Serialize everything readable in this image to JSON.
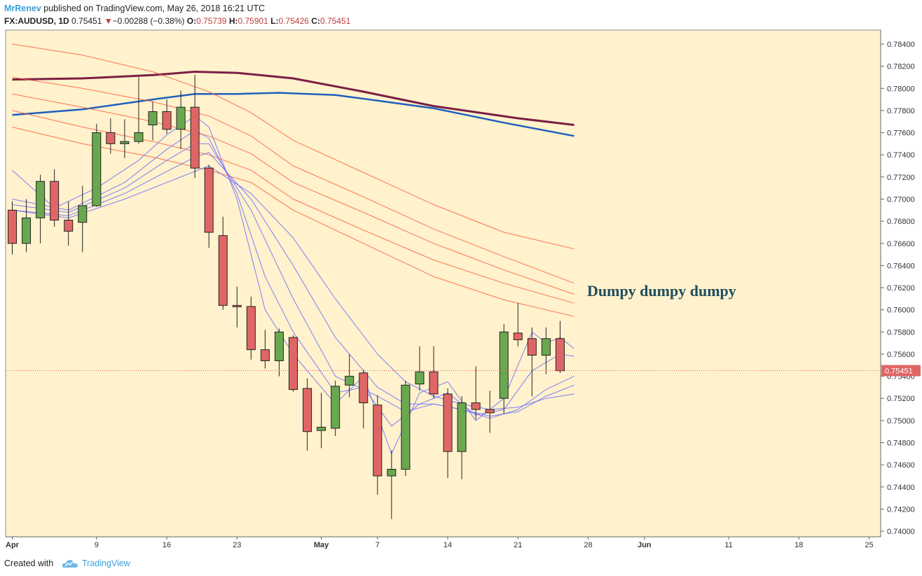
{
  "header": {
    "author": "MrRenev",
    "published": "published on TradingView.com, May 26, 2018 16:21 UTC",
    "symbol": "FX:AUDUSD, 1D",
    "last": "0.75451",
    "down_arrow": "▼",
    "change": "−0.00288 (−0.38%)",
    "o_label": "O:",
    "o_value": "0.75739",
    "h_label": "H:",
    "h_value": "0.75901",
    "l_label": "L:",
    "l_value": "0.75426",
    "c_label": "C:",
    "c_value": "0.75451"
  },
  "footer": {
    "created_with": "Created with",
    "brand": "TradingView",
    "brand_icon": "tradingview-cloud-icon"
  },
  "colors": {
    "background": "#fff2cc",
    "bull": "#6aa84f",
    "bear": "#e06666",
    "sma_long_1": "#7b1f45",
    "sma_long_2": "#1f5fbf",
    "ema_red": "#ff5a3c",
    "ema_blue": "#6b6bff",
    "last_price": "#e06666",
    "annotation": "#1f4e5f"
  },
  "chart_data": {
    "type": "candlestick",
    "symbol": "FX:AUDUSD",
    "timeframe": "1D",
    "annotation": "Dumpy dumpy dumpy",
    "last_price": 0.75451,
    "last_price_label": "0.75451",
    "ylim": [
      0.7395,
      0.7852
    ],
    "y_ticks": [
      "0.78400",
      "0.78200",
      "0.78000",
      "0.77800",
      "0.77600",
      "0.77400",
      "0.77200",
      "0.77000",
      "0.76800",
      "0.76600",
      "0.76400",
      "0.76200",
      "0.76000",
      "0.75800",
      "0.75600",
      "0.75400",
      "0.75200",
      "0.75000",
      "0.74800",
      "0.74600",
      "0.74400",
      "0.74200",
      "0.74000"
    ],
    "x_ticks": [
      {
        "label": "Apr",
        "day": 0,
        "bold": true
      },
      {
        "label": "9",
        "day": 6,
        "bold": false
      },
      {
        "label": "16",
        "day": 11,
        "bold": false
      },
      {
        "label": "23",
        "day": 16,
        "bold": false
      },
      {
        "label": "May",
        "day": 22,
        "bold": true
      },
      {
        "label": "7",
        "day": 26,
        "bold": false
      },
      {
        "label": "14",
        "day": 31,
        "bold": false
      },
      {
        "label": "21",
        "day": 36,
        "bold": false
      },
      {
        "label": "28",
        "day": 41,
        "bold": false
      },
      {
        "label": "Jun",
        "day": 45,
        "bold": true
      },
      {
        "label": "11",
        "day": 51,
        "bold": false
      },
      {
        "label": "18",
        "day": 56,
        "bold": false
      },
      {
        "label": "25",
        "day": 61,
        "bold": false
      }
    ],
    "candles": [
      {
        "o": 0.769,
        "h": 0.7698,
        "l": 0.765,
        "c": 0.766
      },
      {
        "o": 0.766,
        "h": 0.77,
        "l": 0.7652,
        "c": 0.7683
      },
      {
        "o": 0.7683,
        "h": 0.7722,
        "l": 0.766,
        "c": 0.7716
      },
      {
        "o": 0.7716,
        "h": 0.7727,
        "l": 0.7675,
        "c": 0.7681
      },
      {
        "o": 0.7681,
        "h": 0.7698,
        "l": 0.7658,
        "c": 0.7671
      },
      {
        "o": 0.7679,
        "h": 0.7712,
        "l": 0.7652,
        "c": 0.7694
      },
      {
        "o": 0.7694,
        "h": 0.7768,
        "l": 0.7693,
        "c": 0.776
      },
      {
        "o": 0.776,
        "h": 0.7773,
        "l": 0.7741,
        "c": 0.775
      },
      {
        "o": 0.775,
        "h": 0.7772,
        "l": 0.7737,
        "c": 0.7752
      },
      {
        "o": 0.7752,
        "h": 0.781,
        "l": 0.775,
        "c": 0.776
      },
      {
        "o": 0.7767,
        "h": 0.7788,
        "l": 0.7753,
        "c": 0.7779
      },
      {
        "o": 0.7779,
        "h": 0.779,
        "l": 0.7759,
        "c": 0.7763
      },
      {
        "o": 0.7763,
        "h": 0.7798,
        "l": 0.7745,
        "c": 0.7783
      },
      {
        "o": 0.7783,
        "h": 0.7812,
        "l": 0.7719,
        "c": 0.7728
      },
      {
        "o": 0.7728,
        "h": 0.7731,
        "l": 0.7656,
        "c": 0.767
      },
      {
        "o": 0.7667,
        "h": 0.7684,
        "l": 0.76,
        "c": 0.7604
      },
      {
        "o": 0.7604,
        "h": 0.7621,
        "l": 0.7584,
        "c": 0.7603
      },
      {
        "o": 0.7603,
        "h": 0.7612,
        "l": 0.7555,
        "c": 0.7564
      },
      {
        "o": 0.7564,
        "h": 0.7582,
        "l": 0.7547,
        "c": 0.7554
      },
      {
        "o": 0.7554,
        "h": 0.7583,
        "l": 0.754,
        "c": 0.758
      },
      {
        "o": 0.7575,
        "h": 0.7577,
        "l": 0.7526,
        "c": 0.7528
      },
      {
        "o": 0.7529,
        "h": 0.7538,
        "l": 0.7473,
        "c": 0.749
      },
      {
        "o": 0.7491,
        "h": 0.7525,
        "l": 0.7475,
        "c": 0.7494
      },
      {
        "o": 0.7493,
        "h": 0.7536,
        "l": 0.7486,
        "c": 0.7531
      },
      {
        "o": 0.7532,
        "h": 0.756,
        "l": 0.7521,
        "c": 0.754
      },
      {
        "o": 0.7543,
        "h": 0.7546,
        "l": 0.7493,
        "c": 0.7516
      },
      {
        "o": 0.7514,
        "h": 0.7523,
        "l": 0.7433,
        "c": 0.745
      },
      {
        "o": 0.745,
        "h": 0.7473,
        "l": 0.7411,
        "c": 0.7456
      },
      {
        "o": 0.7456,
        "h": 0.7536,
        "l": 0.745,
        "c": 0.7532
      },
      {
        "o": 0.7533,
        "h": 0.7567,
        "l": 0.7527,
        "c": 0.7544
      },
      {
        "o": 0.7544,
        "h": 0.7567,
        "l": 0.752,
        "c": 0.7524
      },
      {
        "o": 0.7524,
        "h": 0.7529,
        "l": 0.7448,
        "c": 0.7472
      },
      {
        "o": 0.7472,
        "h": 0.7522,
        "l": 0.7447,
        "c": 0.7516
      },
      {
        "o": 0.7516,
        "h": 0.7549,
        "l": 0.7501,
        "c": 0.751
      },
      {
        "o": 0.751,
        "h": 0.7527,
        "l": 0.7489,
        "c": 0.7507
      },
      {
        "o": 0.752,
        "h": 0.7587,
        "l": 0.7506,
        "c": 0.758
      },
      {
        "o": 0.7579,
        "h": 0.7606,
        "l": 0.7567,
        "c": 0.7573
      },
      {
        "o": 0.7574,
        "h": 0.7584,
        "l": 0.7522,
        "c": 0.7559
      },
      {
        "o": 0.7559,
        "h": 0.7584,
        "l": 0.7542,
        "c": 0.7574
      },
      {
        "o": 0.7574,
        "h": 0.759,
        "l": 0.7543,
        "c": 0.7545
      }
    ],
    "series": [
      {
        "color": "#7b1f45",
        "width": 3,
        "x": [
          0,
          5,
          10,
          13,
          16,
          20,
          25,
          30,
          36,
          40
        ],
        "y": [
          0.7808,
          0.7809,
          0.7812,
          0.7815,
          0.7814,
          0.7809,
          0.7797,
          0.7784,
          0.7773,
          0.7767
        ]
      },
      {
        "color": "#1f5fbf",
        "width": 2.5,
        "x": [
          0,
          5,
          10,
          13,
          16,
          19,
          23,
          26,
          30,
          35,
          40
        ],
        "y": [
          0.7776,
          0.7781,
          0.779,
          0.7795,
          0.7795,
          0.7796,
          0.7794,
          0.7789,
          0.7782,
          0.7769,
          0.7757
        ]
      },
      {
        "color": "#ff5a3c",
        "width": 1,
        "x": [
          0,
          5,
          10,
          14,
          17,
          20,
          25,
          30,
          35,
          40
        ],
        "y": [
          0.7765,
          0.775,
          0.7738,
          0.7726,
          0.7715,
          0.769,
          0.766,
          0.763,
          0.7609,
          0.7594
        ]
      },
      {
        "color": "#ff5a3c",
        "width": 1,
        "x": [
          0,
          5,
          10,
          14,
          17,
          20,
          25,
          30,
          35,
          40
        ],
        "y": [
          0.778,
          0.7765,
          0.7752,
          0.774,
          0.7726,
          0.77,
          0.7672,
          0.7645,
          0.7624,
          0.7606
        ]
      },
      {
        "color": "#ff5a3c",
        "width": 1,
        "x": [
          0,
          5,
          10,
          14,
          17,
          20,
          25,
          30,
          35,
          40
        ],
        "y": [
          0.7795,
          0.7783,
          0.777,
          0.7757,
          0.7741,
          0.7715,
          0.7688,
          0.766,
          0.7636,
          0.7614
        ]
      },
      {
        "color": "#ff5a3c",
        "width": 1,
        "x": [
          0,
          5,
          10,
          14,
          17,
          20,
          25,
          30,
          35,
          40
        ],
        "y": [
          0.781,
          0.78,
          0.7788,
          0.7775,
          0.7757,
          0.773,
          0.7702,
          0.7673,
          0.7648,
          0.7624
        ]
      },
      {
        "color": "#ff5a3c",
        "width": 1,
        "x": [
          0,
          5,
          10,
          14,
          17,
          20,
          25,
          30,
          35,
          40
        ],
        "y": [
          0.784,
          0.783,
          0.7815,
          0.7797,
          0.7778,
          0.7753,
          0.7724,
          0.7695,
          0.767,
          0.7655
        ]
      },
      {
        "color": "#6b6bff",
        "width": 1,
        "x": [
          0,
          3,
          6,
          9,
          11,
          13,
          14,
          16,
          18,
          20,
          23,
          25,
          27,
          29,
          31,
          33,
          35,
          37,
          38,
          39,
          40
        ],
        "y": [
          0.7726,
          0.7692,
          0.771,
          0.7735,
          0.7758,
          0.7775,
          0.7765,
          0.77,
          0.76,
          0.756,
          0.7515,
          0.754,
          0.747,
          0.7525,
          0.7535,
          0.75,
          0.752,
          0.758,
          0.757,
          0.7575,
          0.7565
        ]
      },
      {
        "color": "#6b6bff",
        "width": 1,
        "x": [
          0,
          4,
          8,
          11,
          13,
          14,
          16,
          18,
          20,
          23,
          25,
          27,
          29,
          31,
          33,
          35,
          37,
          39,
          40
        ],
        "y": [
          0.77,
          0.769,
          0.7715,
          0.7745,
          0.7762,
          0.7755,
          0.7705,
          0.763,
          0.758,
          0.7525,
          0.753,
          0.7495,
          0.7515,
          0.7525,
          0.7505,
          0.751,
          0.7545,
          0.756,
          0.7558
        ]
      },
      {
        "color": "#6b6bff",
        "width": 1,
        "x": [
          0,
          4,
          8,
          11,
          13,
          14,
          17,
          20,
          23,
          26,
          28,
          30,
          32,
          34,
          36,
          38,
          40
        ],
        "y": [
          0.7695,
          0.7688,
          0.771,
          0.7735,
          0.775,
          0.775,
          0.769,
          0.761,
          0.754,
          0.7522,
          0.7508,
          0.7515,
          0.751,
          0.7502,
          0.751,
          0.7528,
          0.754
        ]
      },
      {
        "color": "#6b6bff",
        "width": 1,
        "x": [
          0,
          4,
          8,
          11,
          13,
          14,
          17,
          20,
          23,
          26,
          28,
          30,
          32,
          34,
          36,
          38,
          40
        ],
        "y": [
          0.769,
          0.7685,
          0.7705,
          0.7725,
          0.7738,
          0.7742,
          0.77,
          0.764,
          0.7575,
          0.753,
          0.7515,
          0.7515,
          0.751,
          0.7504,
          0.7508,
          0.7522,
          0.7532
        ]
      },
      {
        "color": "#6b6bff",
        "width": 1,
        "x": [
          0,
          4,
          8,
          11,
          13,
          14,
          17,
          20,
          23,
          26,
          28,
          30,
          32,
          34,
          36,
          38,
          40
        ],
        "y": [
          0.769,
          0.7683,
          0.77,
          0.7715,
          0.7725,
          0.773,
          0.7705,
          0.7665,
          0.761,
          0.756,
          0.7535,
          0.7522,
          0.7515,
          0.751,
          0.7512,
          0.752,
          0.7524
        ]
      }
    ]
  }
}
